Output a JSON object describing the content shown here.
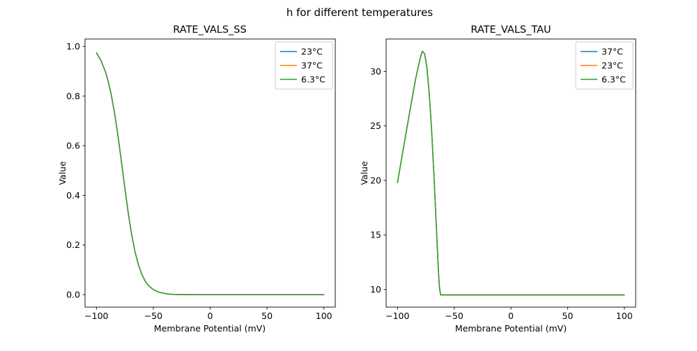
{
  "figure_title": "h for different temperatures",
  "background_color": "#ffffff",
  "chart_data": [
    {
      "type": "line",
      "title": "RATE_VALS_SS",
      "xlabel": "Membrane Potential (mV)",
      "ylabel": "Value",
      "xlim": [
        -110,
        110
      ],
      "ylim": [
        -0.05,
        1.03
      ],
      "xticks": [
        -100,
        -50,
        0,
        50,
        100
      ],
      "xtick_labels": [
        "−100",
        "−50",
        "0",
        "50",
        "100"
      ],
      "yticks": [
        0,
        0.2,
        0.4,
        0.6,
        0.8,
        1.0
      ],
      "ytick_labels": [
        "0.0",
        "0.2",
        "0.4",
        "0.6",
        "0.8",
        "1.0"
      ],
      "grid": false,
      "legend_position": "upper right",
      "note": "All three temperature curves overlap exactly; the green 6.3°C line is drawn last and is the visible one.",
      "x": [
        -100,
        -96,
        -92,
        -90,
        -87,
        -84,
        -81,
        -78,
        -75,
        -72,
        -69,
        -66,
        -63,
        -60,
        -57,
        -54,
        -51,
        -48,
        -45,
        -40,
        -35,
        -30,
        -20,
        -10,
        0,
        50,
        100
      ],
      "series": [
        {
          "name": "23°C",
          "color": "#1f77b4",
          "values": [
            0.975,
            0.943,
            0.898,
            0.866,
            0.807,
            0.731,
            0.639,
            0.536,
            0.43,
            0.329,
            0.242,
            0.172,
            0.119,
            0.081,
            0.054,
            0.036,
            0.024,
            0.016,
            0.01,
            0.005,
            0.002,
            0.001,
            0.0004,
            0.0001,
            0.0,
            0.0,
            0.0
          ]
        },
        {
          "name": "37°C",
          "color": "#ff7f0e",
          "values": [
            0.975,
            0.943,
            0.898,
            0.866,
            0.807,
            0.731,
            0.639,
            0.536,
            0.43,
            0.329,
            0.242,
            0.172,
            0.119,
            0.081,
            0.054,
            0.036,
            0.024,
            0.016,
            0.01,
            0.005,
            0.002,
            0.001,
            0.0004,
            0.0001,
            0.0,
            0.0,
            0.0
          ]
        },
        {
          "name": "6.3°C",
          "color": "#2ca02c",
          "values": [
            0.975,
            0.943,
            0.898,
            0.866,
            0.807,
            0.731,
            0.639,
            0.536,
            0.43,
            0.329,
            0.242,
            0.172,
            0.119,
            0.081,
            0.054,
            0.036,
            0.024,
            0.016,
            0.01,
            0.005,
            0.002,
            0.001,
            0.0004,
            0.0001,
            0.0,
            0.0,
            0.0
          ]
        }
      ]
    },
    {
      "type": "line",
      "title": "RATE_VALS_TAU",
      "xlabel": "Membrane Potential (mV)",
      "ylabel": "Value",
      "xlim": [
        -110,
        110
      ],
      "ylim": [
        8.38,
        32.97
      ],
      "xticks": [
        -100,
        -50,
        0,
        50,
        100
      ],
      "xtick_labels": [
        "−100",
        "−50",
        "0",
        "50",
        "100"
      ],
      "yticks": [
        10,
        15,
        20,
        25,
        30
      ],
      "ytick_labels": [
        "10",
        "15",
        "20",
        "25",
        "30"
      ],
      "grid": false,
      "legend_position": "upper right",
      "note": "All three temperature curves overlap exactly; the green 6.3°C line is drawn last and is the visible one.",
      "x": [
        -100,
        -96,
        -92,
        -88,
        -84,
        -80,
        -78,
        -76,
        -74,
        -72,
        -70,
        -68,
        -66,
        -64,
        -63,
        -62,
        -60,
        -50,
        -25,
        0,
        50,
        100
      ],
      "series": [
        {
          "name": "37°C",
          "color": "#1f77b4",
          "values": [
            19.8,
            22.2,
            24.6,
            27.0,
            29.3,
            31.2,
            31.85,
            31.6,
            30.3,
            28.0,
            24.8,
            20.8,
            16.4,
            11.9,
            10.2,
            9.5,
            9.5,
            9.5,
            9.5,
            9.5,
            9.5,
            9.5
          ]
        },
        {
          "name": "23°C",
          "color": "#ff7f0e",
          "values": [
            19.8,
            22.2,
            24.6,
            27.0,
            29.3,
            31.2,
            31.85,
            31.6,
            30.3,
            28.0,
            24.8,
            20.8,
            16.4,
            11.9,
            10.2,
            9.5,
            9.5,
            9.5,
            9.5,
            9.5,
            9.5,
            9.5
          ]
        },
        {
          "name": "6.3°C",
          "color": "#2ca02c",
          "values": [
            19.8,
            22.2,
            24.6,
            27.0,
            29.3,
            31.2,
            31.85,
            31.6,
            30.3,
            28.0,
            24.8,
            20.8,
            16.4,
            11.9,
            10.2,
            9.5,
            9.5,
            9.5,
            9.5,
            9.5,
            9.5,
            9.5
          ]
        }
      ]
    }
  ]
}
